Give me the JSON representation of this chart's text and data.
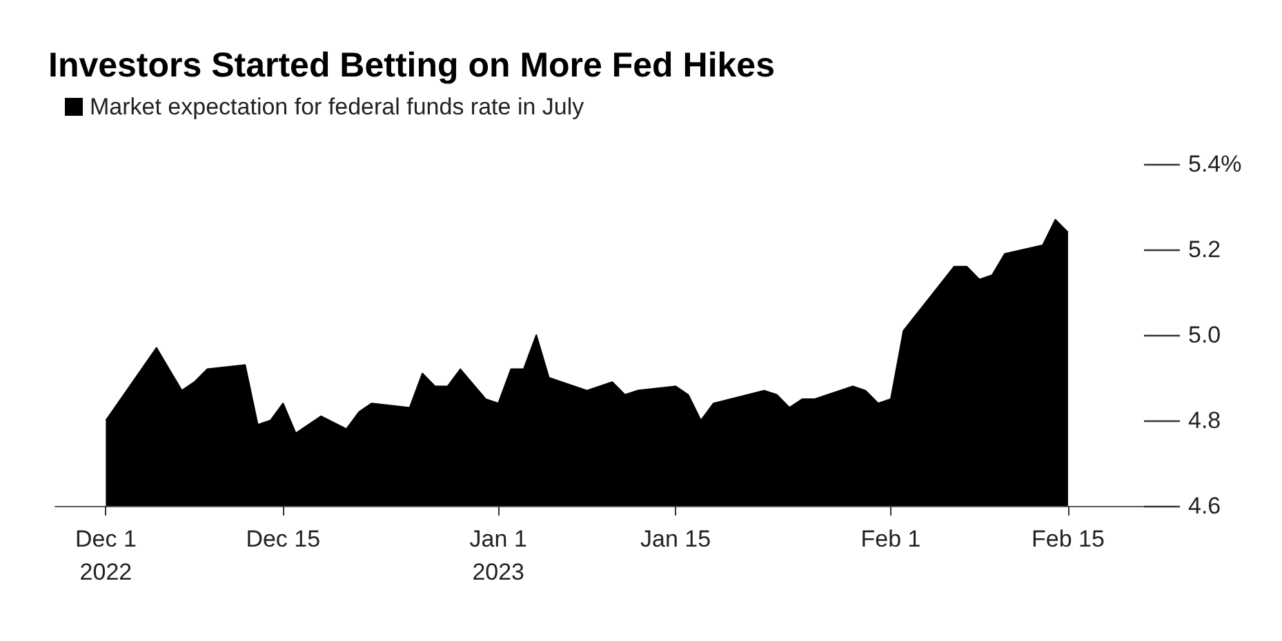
{
  "chart_data": {
    "type": "area",
    "title": "Investors Started Betting on More Fed Hikes",
    "legend": "top left",
    "grid": false,
    "xlim": [
      "2022-11-27",
      "2023-02-21"
    ],
    "xticks": [
      {
        "value": "2022-12-01",
        "label": "Dec 1\n2022"
      },
      {
        "value": "2022-12-15",
        "label": "Dec 15"
      },
      {
        "value": "2023-01-01",
        "label": "Jan 1\n2023"
      },
      {
        "value": "2023-01-15",
        "label": "Jan 15"
      },
      {
        "value": "2023-02-01",
        "label": "Feb 1"
      },
      {
        "value": "2023-02-15",
        "label": "Feb 15"
      }
    ],
    "ylim": [
      4.6,
      5.4
    ],
    "yticks": [
      4.6,
      4.8,
      {
        "value": 5,
        "label": "5.0"
      },
      5.2,
      {
        "value": 5.4,
        "label": "5.4%"
      }
    ],
    "series": [
      {
        "name": "Market expectation for federal funds rate in July",
        "color": "#000000",
        "x": [
          "2022-12-01",
          "2022-12-05",
          "2022-12-07",
          "2022-12-08",
          "2022-12-09",
          "2022-12-12",
          "2022-12-13",
          "2022-12-14",
          "2022-12-15",
          "2022-12-16",
          "2022-12-18",
          "2022-12-20",
          "2022-12-21",
          "2022-12-22",
          "2022-12-25",
          "2022-12-26",
          "2022-12-27",
          "2022-12-28",
          "2022-12-29",
          "2022-12-31",
          "2023-01-01",
          "2023-01-02",
          "2023-01-03",
          "2023-01-04",
          "2023-01-05",
          "2023-01-08",
          "2023-01-10",
          "2023-01-11",
          "2023-01-12",
          "2023-01-15",
          "2023-01-16",
          "2023-01-17",
          "2023-01-18",
          "2023-01-22",
          "2023-01-23",
          "2023-01-24",
          "2023-01-25",
          "2023-01-26",
          "2023-01-29",
          "2023-01-30",
          "2023-01-31",
          "2023-02-01",
          "2023-02-02",
          "2023-02-06",
          "2023-02-07",
          "2023-02-08",
          "2023-02-09",
          "2023-02-10",
          "2023-02-13",
          "2023-02-14",
          "2023-02-15"
        ],
        "values": [
          4.8,
          4.97,
          4.87,
          4.89,
          4.92,
          4.93,
          4.79,
          4.8,
          4.84,
          4.77,
          4.81,
          4.78,
          4.82,
          4.84,
          4.83,
          4.91,
          4.88,
          4.88,
          4.92,
          4.85,
          4.84,
          4.92,
          4.92,
          5.0,
          4.9,
          4.87,
          4.89,
          4.86,
          4.87,
          4.88,
          4.86,
          4.8,
          4.84,
          4.87,
          4.86,
          4.83,
          4.85,
          4.85,
          4.88,
          4.87,
          4.84,
          4.85,
          5.01,
          5.16,
          5.16,
          5.13,
          5.14,
          5.19,
          5.21,
          5.27,
          5.24
        ]
      }
    ]
  }
}
